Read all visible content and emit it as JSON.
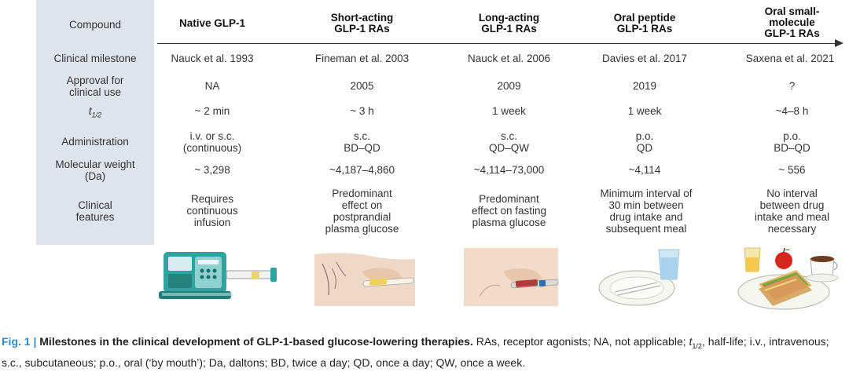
{
  "row_labels": {
    "compound": "Compound",
    "milestone": "Clinical milestone",
    "approval": "Approval for\nclinical use",
    "half_life_base": "t",
    "half_life_sub": "1/2",
    "administration": "Administration",
    "molecular_weight": "Molecular weight\n(Da)",
    "features": "Clinical\nfeatures"
  },
  "columns": [
    {
      "name": "Native GLP-1",
      "milestone": "Nauck et al. 1993",
      "approval": "NA",
      "half_life": "~ 2 min",
      "administration": "i.v. or s.c.\n(continuous)",
      "molecular_weight": "~ 3,298",
      "features": "Requires\ncontinuous\ninfusion",
      "illustration": "infusion-pump-icon"
    },
    {
      "name": "Short-acting\nGLP-1 RAs",
      "milestone": "Fineman et al. 2003",
      "approval": "2005",
      "half_life": "~ 3 h",
      "administration": "s.c.\nBD–QD",
      "molecular_weight": "~4,187–4,860",
      "features": "Predominant\neffect on\npostprandial\nplasma glucose",
      "illustration": "pen-injection-arm-icon"
    },
    {
      "name": "Long-acting\nGLP-1 RAs",
      "milestone": "Nauck et al. 2006",
      "approval": "2009",
      "half_life": "1 week",
      "administration": "s.c.\nQD–QW",
      "molecular_weight": "~4,114–73,000",
      "features": "Predominant\neffect on fasting\nplasma glucose",
      "illustration": "pen-injection-abdomen-icon"
    },
    {
      "name": "Oral peptide\nGLP-1 RAs",
      "milestone": "Davies et al. 2017",
      "approval": "2019",
      "half_life": "1 week",
      "administration": "p.o.\nQD",
      "molecular_weight": "~4,114",
      "features": "Minimum interval of\n30 min between\ndrug intake and\nsubsequent meal",
      "illustration": "plate-and-water-glass-icon"
    },
    {
      "name": "Oral small-\nmolecule\nGLP-1 RAs",
      "milestone": "Saxena et al. 2021",
      "approval": "?",
      "half_life": "~4–8 h",
      "administration": "p.o.\nBD–QD",
      "molecular_weight": "~ 556",
      "features": "No interval\nbetween drug\nintake and meal\nnecessary",
      "illustration": "meal-sandwich-apple-coffee-icon"
    }
  ],
  "caption": {
    "label": "Fig. 1 |",
    "title": "Milestones in the clinical development of GLP-1-based glucose-lowering therapies.",
    "text_before_t": " RAs, receptor agonists; NA, not applicable; ",
    "t_base": "t",
    "t_sub": "1/2",
    "text_after_t": ", half-life; i.v., intravenous; s.c., subcutaneous; p.o., oral (‘by mouth’); Da, daltons; BD, twice a day; QD, once a day; QW, once a week."
  },
  "colors": {
    "label_column_bg": "#dfe3ec",
    "figure_label": "#2a8bd5",
    "pump_teal": "#2fa3a0"
  }
}
